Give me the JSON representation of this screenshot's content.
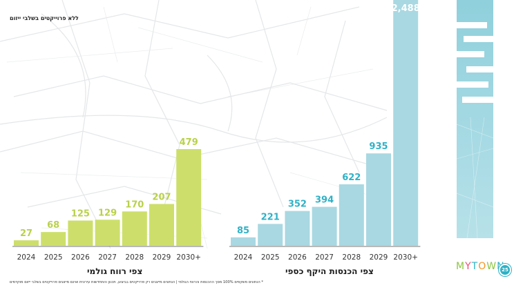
{
  "header_note": "ללא פרוייקטים בשלבי ייזום",
  "footnote": "* הנתונים משקפים 100% מסך ההכנסות והרווח הגולמי | הנתונים מייצגים רק פרוייקטים בביצוע, תכנון והתחדשות עירונית ואינם מייצגים פרוייקטים בשלבי ייזום מוקדמים",
  "logo": {
    "text": "MYTOWN",
    "colors": [
      "#8cc63f",
      "#e94e77",
      "#2fb1c6",
      "#f7941d",
      "#8cc63f",
      "#2fb1c6"
    ]
  },
  "page_number": "25",
  "colors": {
    "green": "#cddf6a",
    "green_label": "#b9d14a",
    "blue": "#a9d8e2",
    "blue_label": "#2fb1c6",
    "axis": "#444444"
  },
  "chart_data": [
    {
      "type": "bar",
      "title": "צפי רווח גולמי",
      "categories": [
        "2024",
        "2025",
        "2026",
        "2027",
        "2028",
        "2029",
        "2030+"
      ],
      "values": [
        27,
        68,
        125,
        129,
        170,
        207,
        479
      ],
      "value_labels": [
        "27",
        "68",
        "125",
        "129",
        "170",
        "207",
        "479"
      ],
      "color": "#cddf6a"
    },
    {
      "type": "bar",
      "title": "צפי הכנסות היקף כספי",
      "categories": [
        "2024",
        "2025",
        "2026",
        "2027",
        "2028",
        "2029",
        "2030+"
      ],
      "values": [
        85,
        221,
        352,
        394,
        622,
        935,
        2488
      ],
      "value_labels": [
        "85",
        "221",
        "352",
        "394",
        "622",
        "935",
        "2,488"
      ],
      "color": "#a9d8e2"
    }
  ]
}
